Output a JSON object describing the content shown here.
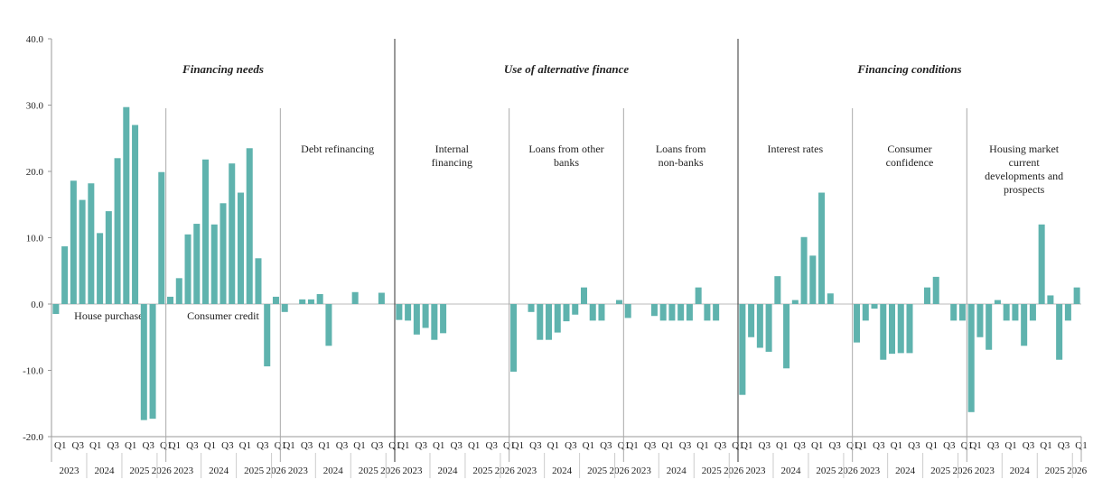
{
  "chart_data": {
    "type": "bar",
    "ylim": [
      -20,
      40
    ],
    "yticks": [
      "40.0",
      "30.0",
      "20.0",
      "10.0",
      "0.0",
      "-10.0",
      "-20.0"
    ],
    "quarter_labels": [
      "Q1",
      "Q3",
      "Q1",
      "Q3",
      "Q1",
      "Q3",
      "Q1"
    ],
    "year_labels": [
      "2023",
      "2024",
      "2025",
      "2026"
    ],
    "groups": [
      {
        "title": "Financing needs",
        "panels": [
          {
            "label": "House purchase",
            "values": [
              -1.5,
              8.7,
              18.6,
              15.7,
              18.2,
              10.7,
              14.0,
              22.0,
              29.7,
              27.0,
              -17.5,
              -17.3,
              19.9
            ]
          },
          {
            "label": "Consumer credit",
            "values": [
              1.1,
              3.9,
              10.5,
              12.1,
              21.8,
              12.0,
              15.2,
              21.2,
              16.8,
              23.5,
              6.9,
              -9.4,
              1.1
            ]
          },
          {
            "label": "Debt refinancing",
            "values": [
              -1.2,
              0,
              0.7,
              0.7,
              1.5,
              -6.3,
              0,
              0,
              1.8,
              0,
              0,
              1.7,
              0
            ]
          }
        ]
      },
      {
        "title": "Use of alternative finance",
        "panels": [
          {
            "label": "Internal financing",
            "values": [
              -2.4,
              -2.5,
              -4.6,
              -3.6,
              -5.4,
              -4.4,
              0,
              0,
              0,
              0,
              0,
              0,
              0
            ]
          },
          {
            "label": "Loans from other banks",
            "values": [
              -10.2,
              0,
              -1.2,
              -5.4,
              -5.4,
              -4.3,
              -2.6,
              -1.6,
              2.5,
              -2.5,
              -2.5,
              0,
              0.6
            ]
          },
          {
            "label": "Loans from non-banks",
            "values": [
              -2.1,
              0,
              0,
              -1.8,
              -2.5,
              -2.5,
              -2.5,
              -2.5,
              2.5,
              -2.5,
              -2.5,
              0,
              0
            ]
          }
        ]
      },
      {
        "title": "Financing conditions",
        "panels": [
          {
            "label": "Interest rates",
            "values": [
              -13.7,
              -5.0,
              -6.6,
              -7.2,
              4.2,
              -9.7,
              0.6,
              10.1,
              7.3,
              16.8,
              1.6,
              0,
              0
            ]
          },
          {
            "label": "Consumer confidence",
            "values": [
              -5.8,
              -2.5,
              -0.7,
              -8.4,
              -7.5,
              -7.4,
              -7.4,
              0,
              2.5,
              4.1,
              0,
              -2.5,
              -2.5
            ]
          },
          {
            "label": "Housing market current developments and prospects",
            "values": [
              -16.3,
              -5.0,
              -6.9,
              0.6,
              -2.5,
              -2.5,
              -6.3,
              -2.5,
              12.0,
              1.3,
              -8.4,
              -2.5,
              2.5
            ]
          }
        ]
      }
    ],
    "color": "#5fb3ae"
  }
}
